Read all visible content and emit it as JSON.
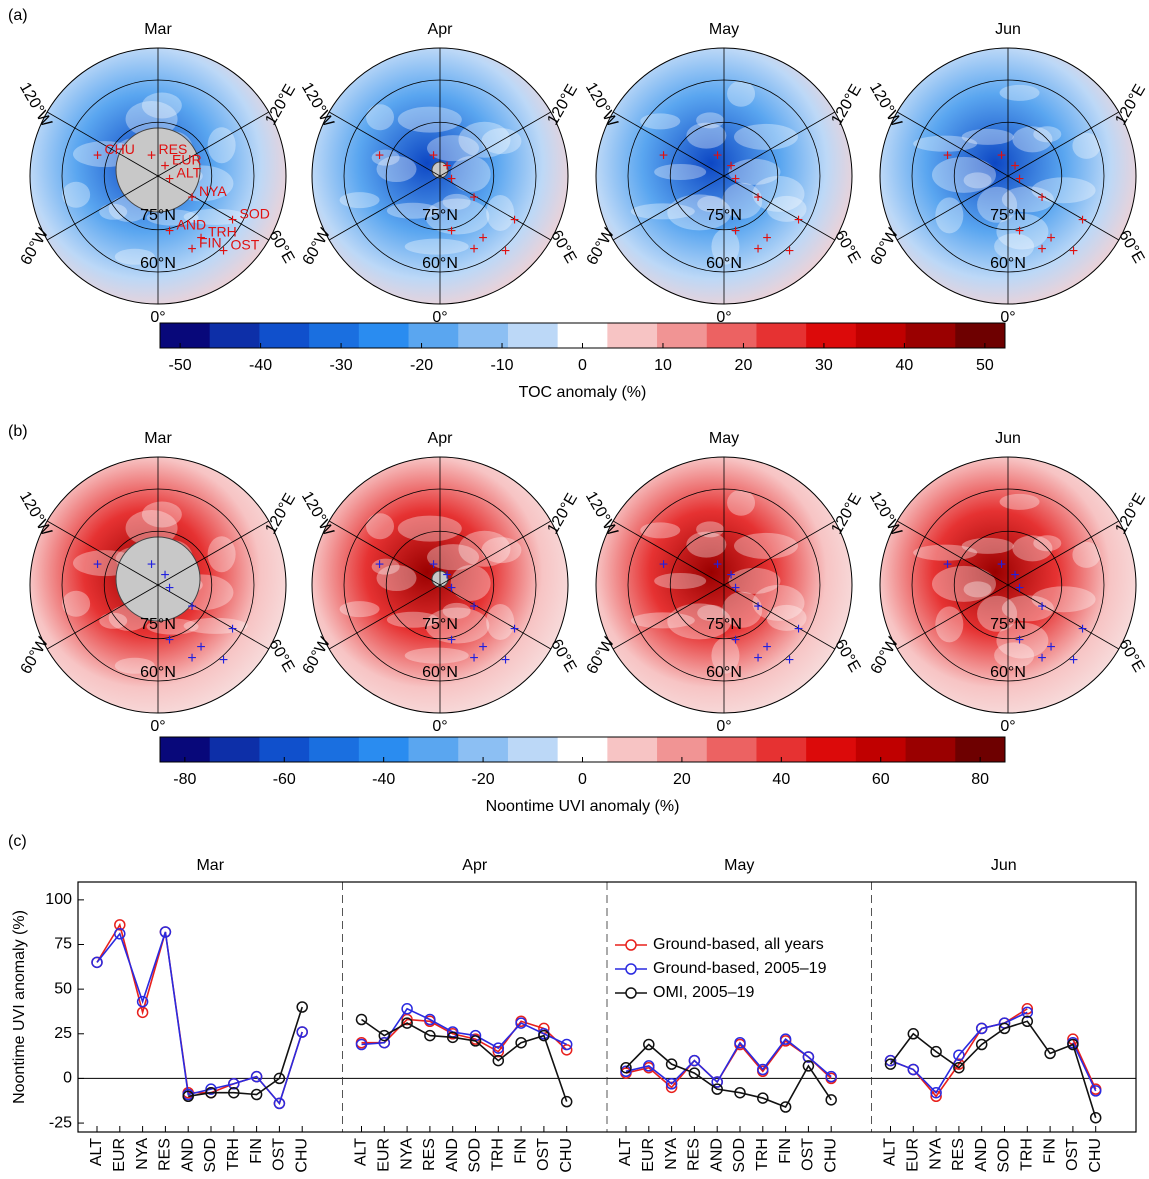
{
  "panel_labels": [
    "(a)",
    "(b)",
    "(c)"
  ],
  "maps": {
    "months": [
      "Mar",
      "Apr",
      "May",
      "Jun"
    ],
    "longitude_labels": [
      "120°W",
      "120°E",
      "60°W",
      "60°E",
      "0°"
    ],
    "latitude_labels": [
      "75°N",
      "60°N"
    ],
    "stations": [
      "CHU",
      "RES",
      "EUR",
      "ALT",
      "NYA",
      "SOD",
      "AND",
      "TRH",
      "FIN",
      "OST"
    ]
  },
  "colorbars": [
    {
      "label": "TOC anomaly (%)",
      "clim": [
        -52.5,
        52.5
      ],
      "ticks": [
        -50,
        -40,
        -30,
        -20,
        -10,
        0,
        10,
        20,
        30,
        40,
        50
      ],
      "colors": [
        "#08087a",
        "#0d2fa8",
        "#1050cc",
        "#1a6fe0",
        "#2a8cf0",
        "#5aa6f0",
        "#8cbff3",
        "#bcd8f7",
        "#ffffff",
        "#f7c4c4",
        "#f19494",
        "#ec6262",
        "#e63232",
        "#dc0a0a",
        "#c00000",
        "#9a0000",
        "#6e0000"
      ]
    },
    {
      "label": "Noontime UVI anomaly (%)",
      "clim": [
        -85,
        85
      ],
      "ticks": [
        -80,
        -60,
        -40,
        -20,
        0,
        20,
        40,
        60,
        80
      ],
      "colors": [
        "#08087a",
        "#0d2fa8",
        "#1050cc",
        "#1a6fe0",
        "#2a8cf0",
        "#5aa6f0",
        "#8cbff3",
        "#bcd8f7",
        "#ffffff",
        "#f7c4c4",
        "#f19494",
        "#ec6262",
        "#e63232",
        "#dc0a0a",
        "#c00000",
        "#9a0000",
        "#6e0000"
      ]
    }
  ],
  "chart_data": [
    {
      "type": "line",
      "title": "Mar",
      "y_label": "Noontime UVI anomaly (%)",
      "ylim": [
        -30,
        110
      ],
      "yticks": [
        -25,
        0,
        25,
        50,
        75,
        100
      ],
      "categories": [
        "ALT",
        "EUR",
        "NYA",
        "RES",
        "AND",
        "SOD",
        "TRH",
        "FIN",
        "OST",
        "CHU"
      ],
      "series": [
        {
          "name": "Ground-based, all years",
          "color": "#e8201c",
          "values": [
            65,
            86,
            37,
            82,
            -8,
            -8,
            -3,
            1,
            -14,
            26
          ]
        },
        {
          "name": "Ground-based, 2005–19",
          "color": "#2a2ae0",
          "values": [
            65,
            81,
            43,
            82,
            -9,
            -6,
            -3,
            1,
            -14,
            26
          ]
        },
        {
          "name": "OMI, 2005–19",
          "color": "#111111",
          "values": [
            null,
            null,
            null,
            null,
            -10,
            -8,
            -8,
            -9,
            0,
            40
          ]
        }
      ]
    },
    {
      "type": "line",
      "title": "Apr",
      "ylim": [
        -30,
        110
      ],
      "yticks": [
        -25,
        0,
        25,
        50,
        75,
        100
      ],
      "categories": [
        "ALT",
        "EUR",
        "NYA",
        "RES",
        "AND",
        "SOD",
        "TRH",
        "FIN",
        "OST",
        "CHU"
      ],
      "series": [
        {
          "name": "Ground-based, all years",
          "color": "#e8201c",
          "values": [
            20,
            20,
            33,
            32,
            25,
            22,
            15,
            32,
            28,
            16
          ]
        },
        {
          "name": "Ground-based, 2005–19",
          "color": "#2a2ae0",
          "values": [
            19,
            20,
            39,
            33,
            26,
            24,
            17,
            31,
            25,
            19
          ]
        },
        {
          "name": "OMI, 2005–19",
          "color": "#111111",
          "values": [
            33,
            24,
            31,
            24,
            23,
            21,
            10,
            20,
            24,
            -13
          ]
        }
      ]
    },
    {
      "type": "line",
      "title": "May",
      "ylim": [
        -30,
        110
      ],
      "yticks": [
        -25,
        0,
        25,
        50,
        75,
        100
      ],
      "categories": [
        "ALT",
        "EUR",
        "NYA",
        "RES",
        "AND",
        "SOD",
        "TRH",
        "FIN",
        "OST",
        "CHU"
      ],
      "series": [
        {
          "name": "Ground-based, all years",
          "color": "#e8201c",
          "values": [
            3,
            6,
            -5,
            10,
            -2,
            19,
            4,
            21,
            12,
            0
          ]
        },
        {
          "name": "Ground-based, 2005–19",
          "color": "#2a2ae0",
          "values": [
            4,
            7,
            -3,
            10,
            -2,
            20,
            5,
            22,
            12,
            1
          ]
        },
        {
          "name": "OMI, 2005–19",
          "color": "#111111",
          "values": [
            6,
            19,
            8,
            3,
            -6,
            -8,
            -11,
            -16,
            7,
            -12
          ]
        }
      ]
    },
    {
      "type": "line",
      "title": "Jun",
      "ylim": [
        -30,
        110
      ],
      "yticks": [
        -25,
        0,
        25,
        50,
        75,
        100
      ],
      "categories": [
        "ALT",
        "EUR",
        "NYA",
        "RES",
        "AND",
        "SOD",
        "TRH",
        "FIN",
        "OST",
        "CHU"
      ],
      "series": [
        {
          "name": "Ground-based, all years",
          "color": "#e8201c",
          "values": [
            10,
            5,
            -10,
            8,
            28,
            31,
            39,
            null,
            22,
            -6
          ]
        },
        {
          "name": "Ground-based, 2005–19",
          "color": "#2a2ae0",
          "values": [
            10,
            5,
            -8,
            13,
            28,
            31,
            37,
            null,
            20,
            -7
          ]
        },
        {
          "name": "OMI, 2005–19",
          "color": "#111111",
          "values": [
            8,
            25,
            15,
            6,
            19,
            28,
            32,
            14,
            19,
            -22
          ]
        }
      ]
    }
  ]
}
